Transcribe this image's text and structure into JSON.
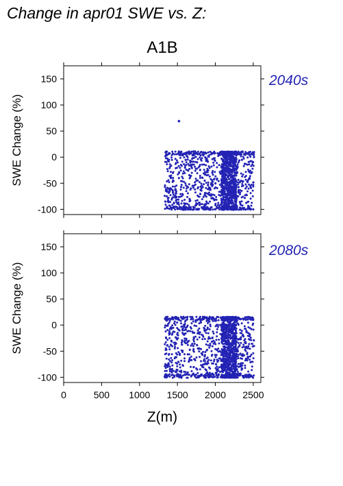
{
  "page": {
    "title": "Change in apr01 SWE vs. Z:"
  },
  "chart_data": {
    "type": "scatter",
    "scenario": "A1B",
    "xlabel": "Z(m)",
    "ylabel": "SWE Change (%)",
    "xlim": [
      0,
      2600
    ],
    "ylim": [
      -110,
      175
    ],
    "xticks": [
      0,
      500,
      1000,
      1500,
      2000,
      2500
    ],
    "yticks": [
      -100,
      -50,
      0,
      50,
      100,
      150
    ],
    "marker_color": "#2323b4",
    "panels": [
      {
        "period": "2040s",
        "x_range": [
          1330,
          2510
        ],
        "y_range": [
          -101,
          11
        ],
        "outliers": [
          {
            "x": 1520,
            "y": 69
          }
        ],
        "x": [
          1340,
          1350,
          1360,
          1410,
          1480,
          1520,
          1560,
          1600,
          1660,
          1700,
          1760,
          1800,
          1860,
          1900,
          1960,
          2000,
          2050,
          2100,
          2130,
          2150,
          2180,
          2200,
          2220,
          2260,
          2300,
          2350,
          2400,
          2450,
          2500,
          2510
        ],
        "y": [
          -85,
          -2,
          -75,
          -60,
          -95,
          -40,
          -100,
          -20,
          -80,
          -55,
          -10,
          -90,
          -45,
          -70,
          -30,
          -100,
          -15,
          -65,
          5,
          -95,
          -35,
          -50,
          -85,
          -25,
          -75,
          -5,
          -60,
          -40,
          -100,
          0
        ]
      },
      {
        "period": "2080s",
        "x_range": [
          1330,
          2510
        ],
        "y_range": [
          -101,
          16
        ],
        "outliers": [],
        "x": [
          1340,
          1350,
          1370,
          1420,
          1480,
          1530,
          1570,
          1610,
          1650,
          1710,
          1760,
          1810,
          1860,
          1910,
          1960,
          2010,
          2060,
          2100,
          2140,
          2160,
          2180,
          2210,
          2240,
          2270,
          2310,
          2360,
          2410,
          2460,
          2500,
          2510
        ],
        "y": [
          -100,
          10,
          -80,
          -30,
          -90,
          -55,
          -10,
          -95,
          -70,
          -40,
          -85,
          5,
          -60,
          -100,
          -25,
          -75,
          -50,
          -90,
          15,
          -35,
          -65,
          -5,
          -95,
          -45,
          -80,
          -20,
          -100,
          -60,
          10,
          -40
        ]
      }
    ]
  }
}
